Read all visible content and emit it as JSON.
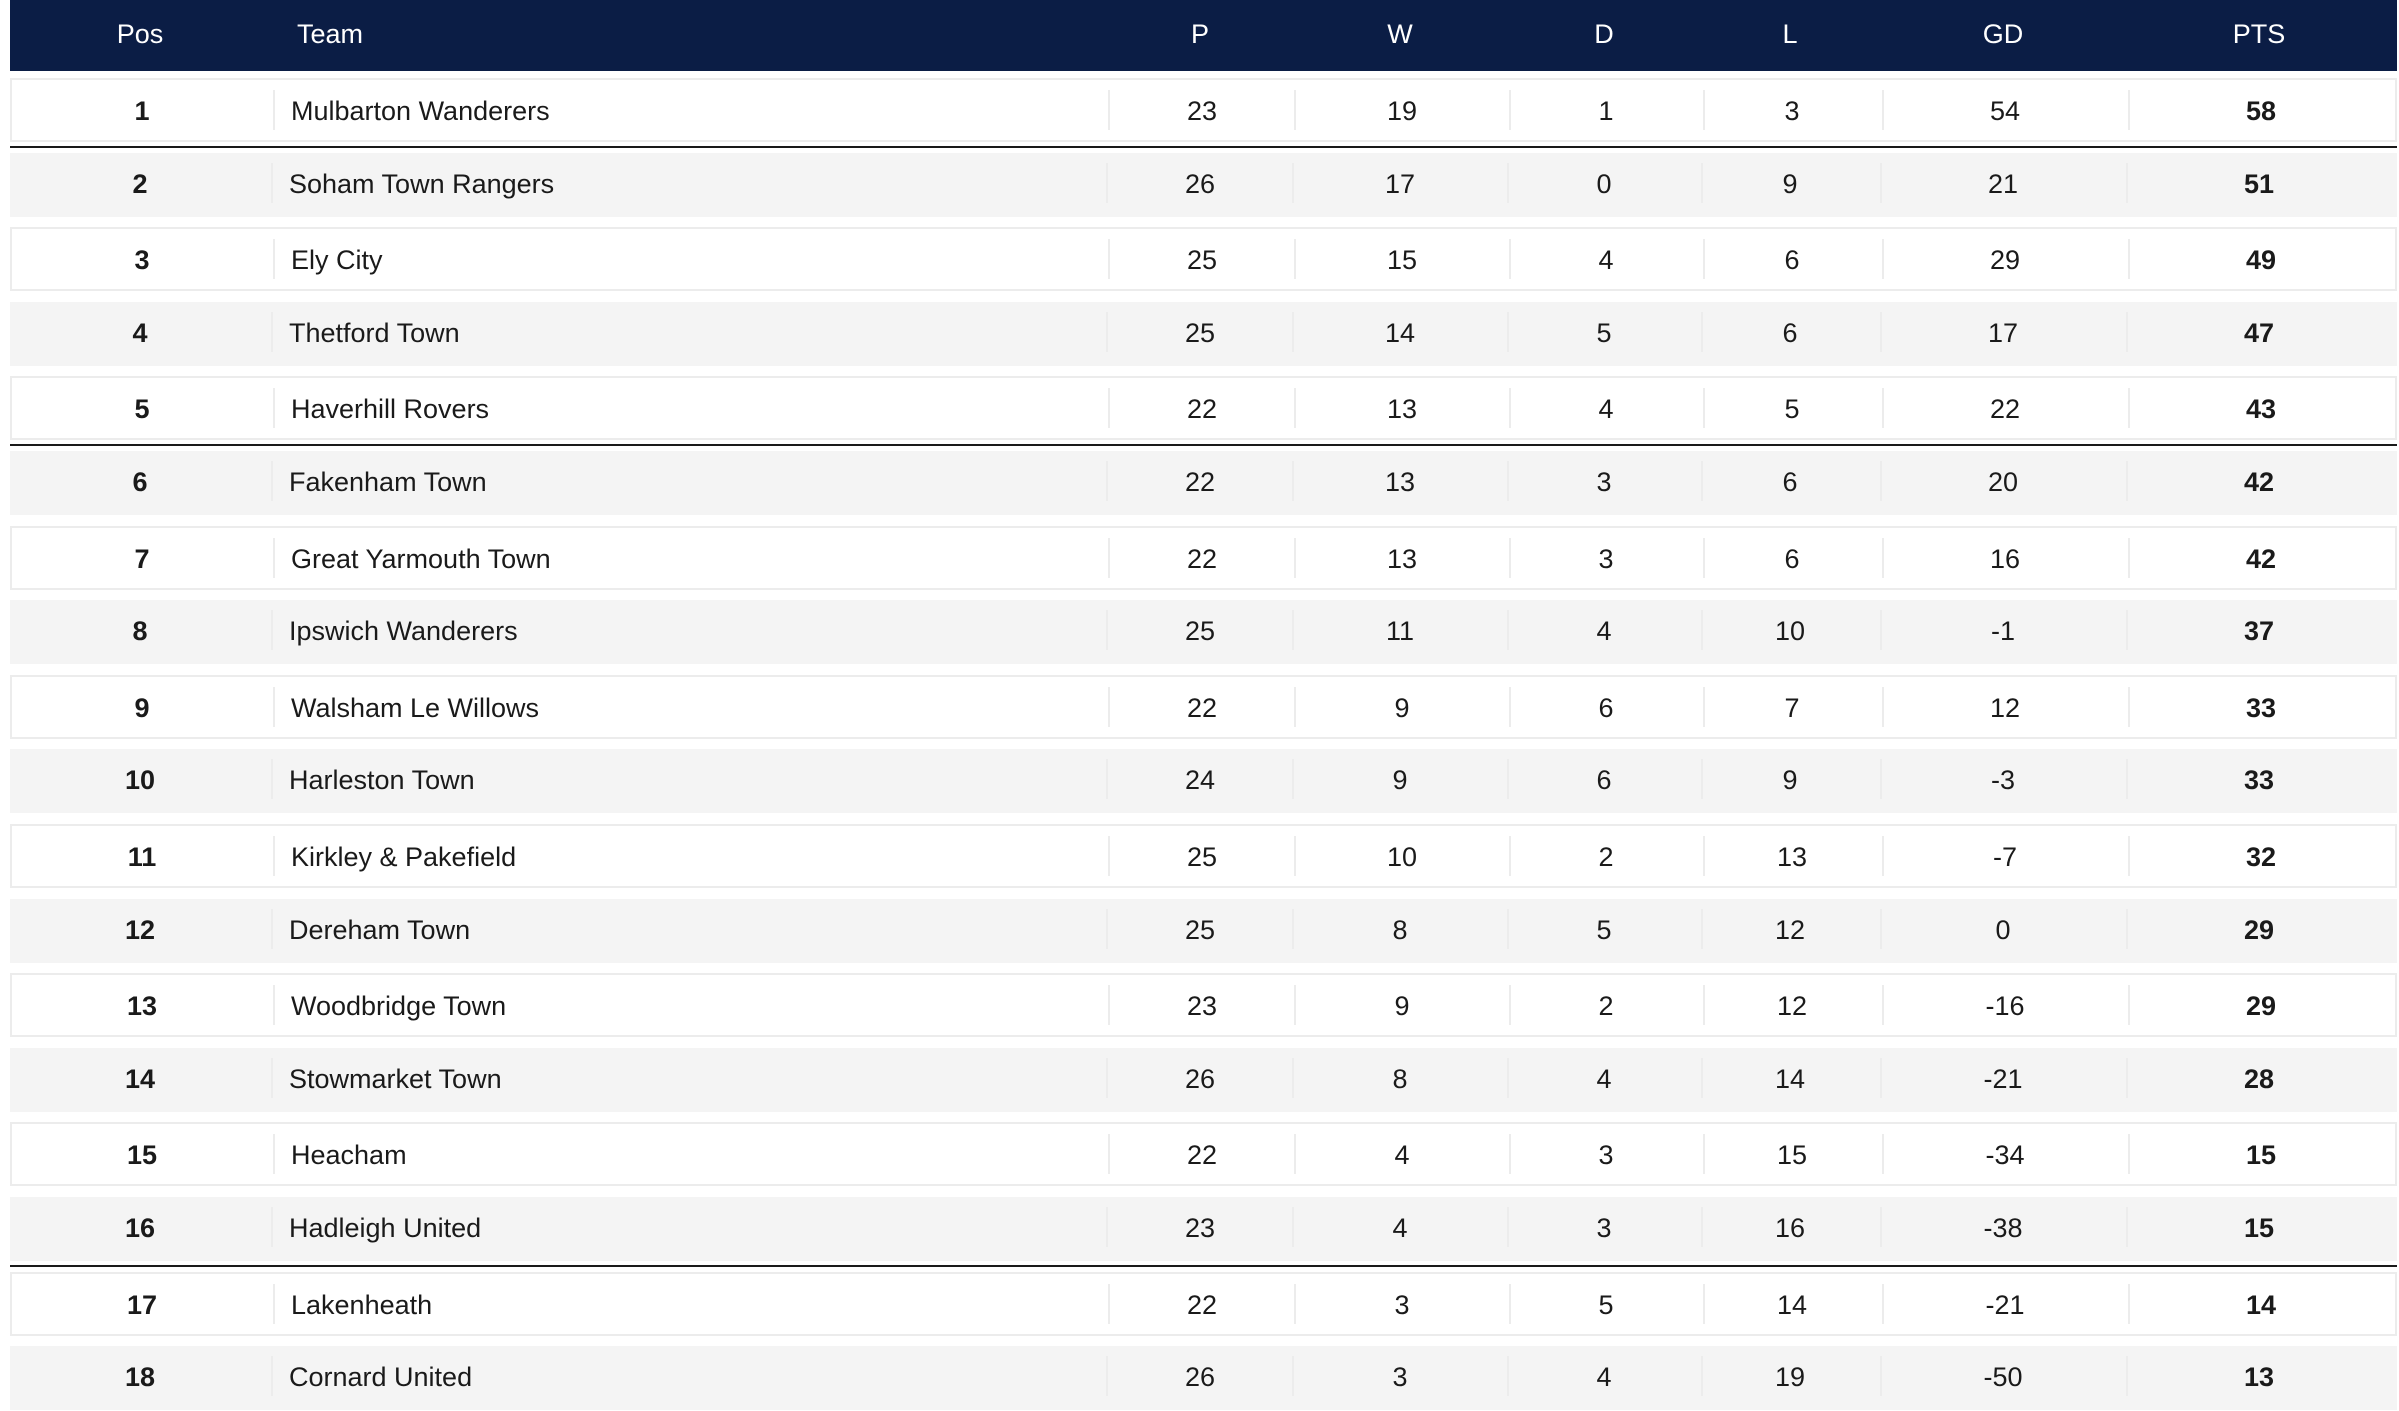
{
  "table": {
    "headers": [
      "Pos",
      "Team",
      "P",
      "W",
      "D",
      "L",
      "GD",
      "PTS"
    ],
    "rows": [
      [
        1,
        "Mulbarton Wanderers",
        23,
        19,
        1,
        3,
        54,
        58
      ],
      [
        2,
        "Soham Town Rangers",
        26,
        17,
        0,
        9,
        21,
        51
      ],
      [
        3,
        "Ely City",
        25,
        15,
        4,
        6,
        29,
        49
      ],
      [
        4,
        "Thetford Town",
        25,
        14,
        5,
        6,
        17,
        47
      ],
      [
        5,
        "Haverhill Rovers",
        22,
        13,
        4,
        5,
        22,
        43
      ],
      [
        6,
        "Fakenham Town",
        22,
        13,
        3,
        6,
        20,
        42
      ],
      [
        7,
        "Great Yarmouth Town",
        22,
        13,
        3,
        6,
        16,
        42
      ],
      [
        8,
        "Ipswich Wanderers",
        25,
        11,
        4,
        10,
        -1,
        37
      ],
      [
        9,
        "Walsham Le Willows",
        22,
        9,
        6,
        7,
        12,
        33
      ],
      [
        10,
        "Harleston Town",
        24,
        9,
        6,
        9,
        -3,
        33
      ],
      [
        11,
        "Kirkley & Pakefield",
        25,
        10,
        2,
        13,
        -7,
        32
      ],
      [
        12,
        "Dereham Town",
        25,
        8,
        5,
        12,
        0,
        29
      ],
      [
        13,
        "Woodbridge Town",
        23,
        9,
        2,
        12,
        -16,
        29
      ],
      [
        14,
        "Stowmarket Town",
        26,
        8,
        4,
        14,
        -21,
        28
      ],
      [
        15,
        "Heacham",
        22,
        4,
        3,
        15,
        -34,
        15
      ],
      [
        16,
        "Hadleigh United",
        23,
        4,
        3,
        16,
        -38,
        15
      ],
      [
        17,
        "Lakenheath",
        22,
        3,
        5,
        14,
        -21,
        14
      ],
      [
        18,
        "Cornard United",
        26,
        3,
        4,
        19,
        -50,
        13
      ]
    ]
  }
}
